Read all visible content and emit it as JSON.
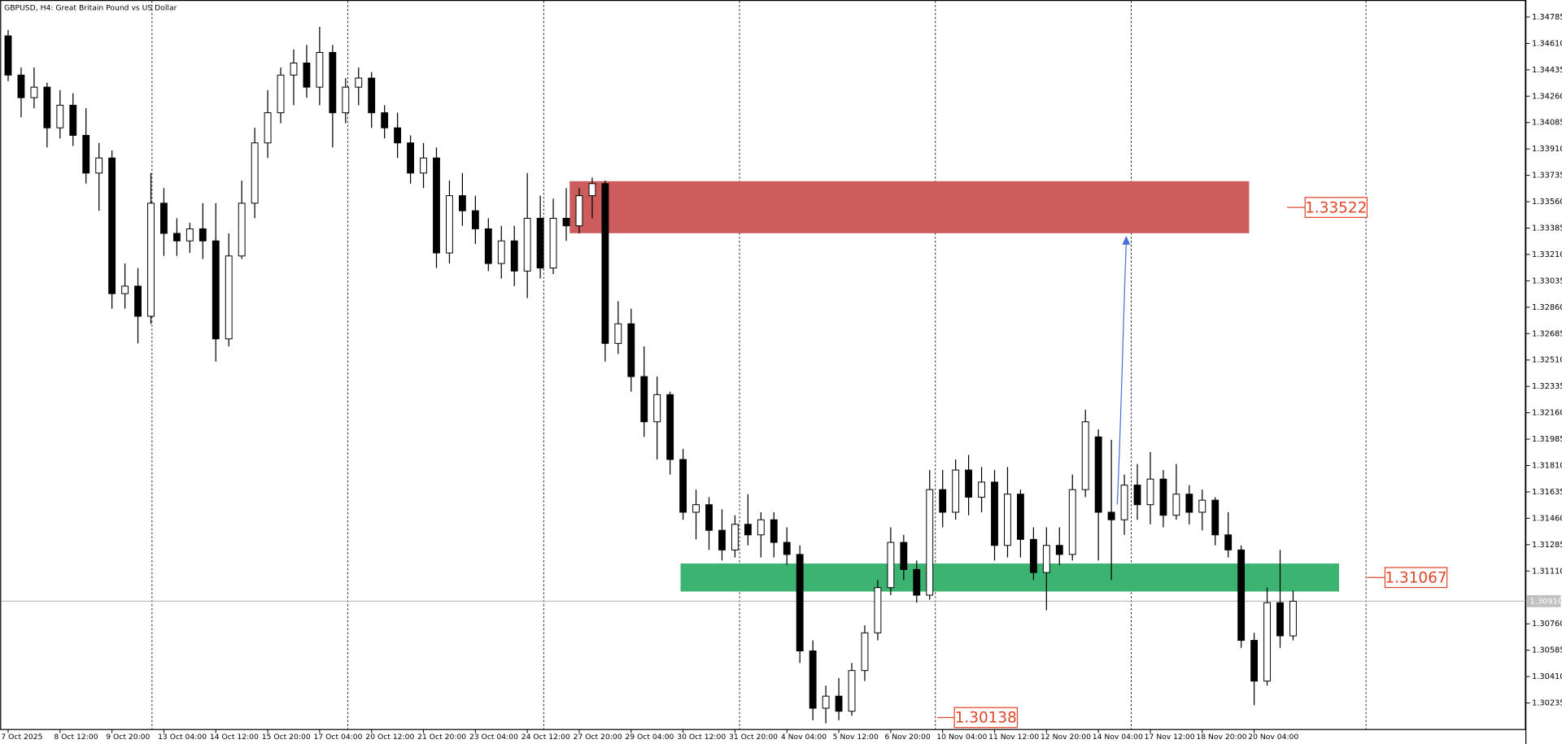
{
  "chart_data": {
    "type": "candlestick",
    "title": "GBPUSD, H4:  Great Britain Pound vs US Dollar",
    "categories": [
      "7 Oct 2025",
      null,
      null,
      null,
      "8 Oct 12:00",
      null,
      null,
      null,
      "9 Oct 20:00",
      null,
      null,
      null,
      "13 Oct 04:00",
      null,
      null,
      null,
      "14 Oct 12:00",
      null,
      null,
      null,
      "15 Oct 20:00",
      null,
      null,
      null,
      "17 Oct 04:00",
      null,
      null,
      null,
      "20 Oct 12:00",
      null,
      null,
      null,
      "21 Oct 20:00",
      null,
      null,
      null,
      "23 Oct 04:00",
      null,
      null,
      null,
      "24 Oct 12:00",
      null,
      null,
      null,
      "27 Oct 20:00",
      null,
      null,
      null,
      "29 Oct 04:00",
      null,
      null,
      null,
      "30 Oct 12:00",
      null,
      null,
      null,
      "31 Oct 20:00",
      null,
      null,
      null,
      "4 Nov 04:00",
      null,
      null,
      null,
      "5 Nov 12:00",
      null,
      null,
      null,
      "6 Nov 20:00",
      null,
      null,
      null,
      "10 Nov 04:00",
      null,
      null,
      null,
      "11 Nov 12:00",
      null,
      null,
      null,
      "12 Nov 20:00",
      null,
      null,
      null,
      "14 Nov 04:00",
      null,
      null,
      null,
      "17 Nov 12:00",
      null,
      null,
      null,
      "18 Nov 20:00",
      null,
      null,
      null,
      "20 Nov 04:00",
      null,
      null,
      null
    ],
    "open": [
      1.3466,
      1.344,
      1.3425,
      1.3432,
      1.3405,
      1.342,
      1.34,
      1.3375,
      1.3385,
      1.3295,
      1.33,
      1.328,
      1.3355,
      1.3335,
      1.333,
      1.3338,
      1.333,
      1.3265,
      1.332,
      1.3355,
      1.3395,
      1.3415,
      1.344,
      1.3448,
      1.3432,
      1.3455,
      1.3415,
      1.3432,
      1.3438,
      1.3415,
      1.3405,
      1.3395,
      1.3375,
      1.3385,
      1.3322,
      1.336,
      1.335,
      1.3338,
      1.3315,
      1.333,
      1.331,
      1.3345,
      1.3312,
      1.3345,
      1.334,
      1.336,
      1.3368,
      1.3262,
      1.3275,
      1.324,
      1.321,
      1.3228,
      1.3185,
      1.315,
      1.3155,
      1.3138,
      1.3125,
      1.3142,
      1.3135,
      1.3145,
      1.313,
      1.3122,
      1.3058,
      1.302,
      1.3028,
      1.3018,
      1.3045,
      1.307,
      1.31,
      1.313,
      1.3112,
      1.3095,
      1.3165,
      1.315,
      1.3178,
      1.316,
      1.317,
      1.3128,
      1.3162,
      1.3132,
      1.311,
      1.3128,
      1.3122,
      1.3165,
      1.32,
      1.315,
      1.3145,
      1.3168,
      1.3155,
      1.3172,
      1.3148,
      1.3162,
      1.315,
      1.3158,
      1.3135,
      1.3125,
      1.3065,
      1.3038,
      1.309,
      1.3068
    ],
    "high": [
      1.347,
      1.3445,
      1.3445,
      1.3435,
      1.343,
      1.3428,
      1.3418,
      1.3395,
      1.339,
      1.3315,
      1.3312,
      1.3375,
      1.3365,
      1.3345,
      1.3342,
      1.3355,
      1.3355,
      1.3335,
      1.337,
      1.3405,
      1.343,
      1.3445,
      1.3457,
      1.346,
      1.3472,
      1.346,
      1.3438,
      1.3445,
      1.3442,
      1.342,
      1.3415,
      1.34,
      1.3395,
      1.3392,
      1.337,
      1.3375,
      1.336,
      1.3345,
      1.334,
      1.334,
      1.3375,
      1.336,
      1.3358,
      1.3365,
      1.3365,
      1.3372,
      1.337,
      1.329,
      1.3285,
      1.326,
      1.324,
      1.323,
      1.3192,
      1.3165,
      1.316,
      1.3152,
      1.3148,
      1.3162,
      1.315,
      1.315,
      1.314,
      1.3128,
      1.3065,
      1.3035,
      1.304,
      1.305,
      1.3075,
      1.3105,
      1.314,
      1.3135,
      1.3118,
      1.3178,
      1.3178,
      1.3185,
      1.3188,
      1.318,
      1.3178,
      1.318,
      1.3165,
      1.314,
      1.314,
      1.314,
      1.3175,
      1.3218,
      1.3205,
      1.3198,
      1.3175,
      1.3182,
      1.319,
      1.3178,
      1.3182,
      1.3168,
      1.3165,
      1.316,
      1.315,
      1.3128,
      1.307,
      1.31,
      1.3125,
      1.3098
    ],
    "low": [
      1.3436,
      1.3412,
      1.3418,
      1.3392,
      1.3398,
      1.3393,
      1.3368,
      1.335,
      1.3285,
      1.3285,
      1.3262,
      1.3275,
      1.332,
      1.332,
      1.3322,
      1.3318,
      1.325,
      1.326,
      1.3318,
      1.3345,
      1.3385,
      1.3408,
      1.342,
      1.3425,
      1.342,
      1.3392,
      1.3408,
      1.342,
      1.3405,
      1.3398,
      1.3385,
      1.3368,
      1.3365,
      1.3312,
      1.3315,
      1.334,
      1.3328,
      1.331,
      1.3305,
      1.33,
      1.3292,
      1.3305,
      1.3308,
      1.333,
      1.3335,
      1.3345,
      1.325,
      1.3255,
      1.323,
      1.32,
      1.3185,
      1.3175,
      1.3145,
      1.3132,
      1.3125,
      1.3118,
      1.312,
      1.3128,
      1.312,
      1.312,
      1.3115,
      1.305,
      1.3012,
      1.301,
      1.3012,
      1.3015,
      1.3038,
      1.3065,
      1.3095,
      1.3105,
      1.309,
      1.3092,
      1.314,
      1.3145,
      1.3148,
      1.315,
      1.3118,
      1.312,
      1.312,
      1.3105,
      1.3085,
      1.3115,
      1.3118,
      1.316,
      1.3118,
      1.3105,
      1.3135,
      1.3145,
      1.3142,
      1.314,
      1.3145,
      1.3142,
      1.3138,
      1.3128,
      1.312,
      1.306,
      1.3022,
      1.3035,
      1.306,
      1.3065
    ],
    "close": [
      1.344,
      1.3425,
      1.3432,
      1.3405,
      1.342,
      1.34,
      1.3375,
      1.3385,
      1.3295,
      1.33,
      1.328,
      1.3355,
      1.3335,
      1.333,
      1.3338,
      1.333,
      1.3265,
      1.332,
      1.3355,
      1.3395,
      1.3415,
      1.344,
      1.3448,
      1.3432,
      1.3455,
      1.3415,
      1.3432,
      1.3438,
      1.3415,
      1.3405,
      1.3395,
      1.3375,
      1.3385,
      1.3322,
      1.336,
      1.335,
      1.3338,
      1.3315,
      1.333,
      1.331,
      1.3345,
      1.3312,
      1.3345,
      1.334,
      1.336,
      1.3368,
      1.3262,
      1.3275,
      1.324,
      1.321,
      1.3228,
      1.3185,
      1.315,
      1.3155,
      1.3138,
      1.3125,
      1.3142,
      1.3135,
      1.3145,
      1.313,
      1.3122,
      1.3058,
      1.302,
      1.3028,
      1.3018,
      1.3045,
      1.307,
      1.31,
      1.313,
      1.3112,
      1.3095,
      1.3165,
      1.315,
      1.3178,
      1.316,
      1.317,
      1.3128,
      1.3162,
      1.3132,
      1.311,
      1.3128,
      1.3122,
      1.3165,
      1.321,
      1.315,
      1.3145,
      1.3168,
      1.3155,
      1.3172,
      1.3148,
      1.3162,
      1.315,
      1.3158,
      1.3135,
      1.3125,
      1.3065,
      1.3038,
      1.309,
      1.3068,
      1.3091
    ],
    "up_color": "#ffffff",
    "down_color": "#000000",
    "ylim": [
      1.30062,
      1.34898
    ],
    "yticks": [
      1.34785,
      {
        "value": 1.3461,
        "label": "1.34610"
      },
      1.34435,
      {
        "value": 1.3426,
        "label": "1.34260"
      },
      1.34085,
      {
        "value": 1.3391,
        "label": "1.33910"
      },
      1.33735,
      {
        "value": 1.3356,
        "label": "1.33560"
      },
      1.33385,
      {
        "value": 1.3321,
        "label": "1.33210"
      },
      1.33035,
      {
        "value": 1.3286,
        "label": "1.32860"
      },
      1.32685,
      {
        "value": 1.3251,
        "label": "1.32510"
      },
      1.32335,
      {
        "value": 1.3216,
        "label": "1.32160"
      },
      1.31985,
      {
        "value": 1.3181,
        "label": "1.31810"
      },
      1.31635,
      {
        "value": 1.3146,
        "label": "1.31460"
      },
      1.31285,
      {
        "value": 1.3111,
        "label": "1.31110"
      },
      {
        "value": 1.3076,
        "label": "1.30760"
      },
      1.30585,
      {
        "value": 1.3041,
        "label": "1.30410"
      },
      1.30235
    ],
    "last_price": {
      "value": 1.3091,
      "label": "1.30910"
    },
    "zones": [
      {
        "top": 1.33696,
        "bottom": 1.33351,
        "value": 1.33522,
        "color": "#cd5c5c"
      },
      {
        "top": 1.3116,
        "bottom": 1.30974,
        "value": 1.31067,
        "color": "#3cb371"
      }
    ],
    "low_marker": {
      "value": 1.30138
    }
  }
}
